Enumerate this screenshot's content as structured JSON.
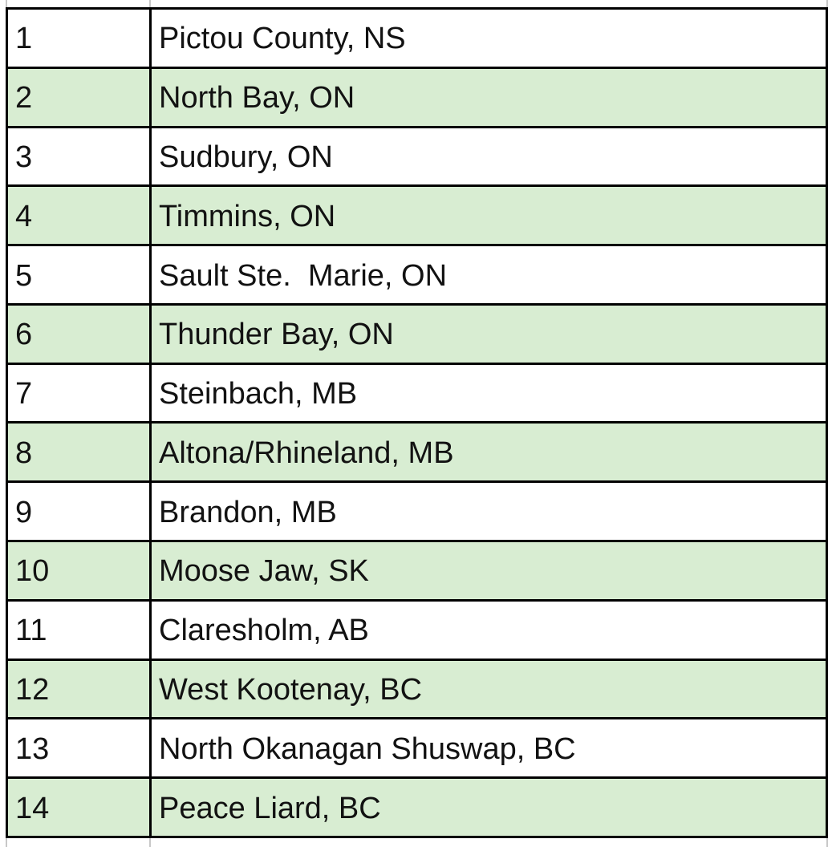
{
  "table": {
    "description": "Numbered list of Canadian regions",
    "columns": {
      "rank": "rank",
      "location": "location"
    },
    "rows": [
      {
        "rank": "1",
        "location": "Pictou County, NS"
      },
      {
        "rank": "2",
        "location": "North Bay, ON"
      },
      {
        "rank": "3",
        "location": "Sudbury, ON"
      },
      {
        "rank": "4",
        "location": "Timmins, ON"
      },
      {
        "rank": "5",
        "location": "Sault Ste.  Marie, ON"
      },
      {
        "rank": "6",
        "location": "Thunder Bay, ON"
      },
      {
        "rank": "7",
        "location": "Steinbach, MB"
      },
      {
        "rank": "8",
        "location": "Altona/Rhineland, MB"
      },
      {
        "rank": "9",
        "location": "Brandon, MB"
      },
      {
        "rank": "10",
        "location": "Moose Jaw, SK"
      },
      {
        "rank": "11",
        "location": "Claresholm, AB"
      },
      {
        "rank": "12",
        "location": "West Kootenay, BC"
      },
      {
        "rank": "13",
        "location": "North Okanagan Shuswap, BC"
      },
      {
        "rank": "14",
        "location": "Peace Liard, BC"
      }
    ],
    "colors": {
      "background": "#ffffff",
      "row_fill": "#ffffff",
      "row_alt_fill": "#d8edd2",
      "border": "#000000",
      "gridline": "#c8c8c8",
      "text": "#121212"
    }
  }
}
